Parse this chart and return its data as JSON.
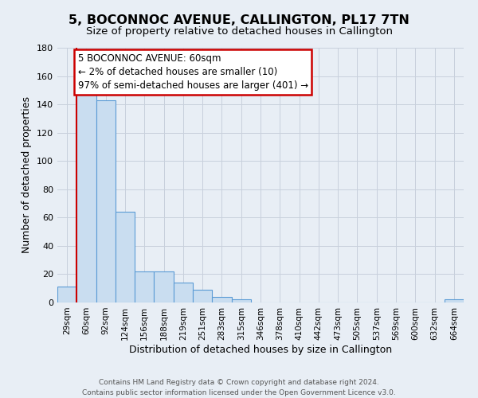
{
  "title": "5, BOCONNOC AVENUE, CALLINGTON, PL17 7TN",
  "subtitle": "Size of property relative to detached houses in Callington",
  "xlabel": "Distribution of detached houses by size in Callington",
  "ylabel": "Number of detached properties",
  "bin_labels": [
    "29sqm",
    "60sqm",
    "92sqm",
    "124sqm",
    "156sqm",
    "188sqm",
    "219sqm",
    "251sqm",
    "283sqm",
    "315sqm",
    "346sqm",
    "378sqm",
    "410sqm",
    "442sqm",
    "473sqm",
    "505sqm",
    "537sqm",
    "569sqm",
    "600sqm",
    "632sqm",
    "664sqm"
  ],
  "bar_values": [
    11,
    150,
    143,
    64,
    22,
    22,
    14,
    9,
    4,
    2,
    0,
    0,
    0,
    0,
    0,
    0,
    0,
    0,
    0,
    0,
    2
  ],
  "bar_color": "#c9ddf0",
  "bar_edge_color": "#5b9bd5",
  "grid_color": "#c8d0dc",
  "background_color": "#e8eef5",
  "annotation_line1": "5 BOCONNOC AVENUE: 60sqm",
  "annotation_line2": "← 2% of detached houses are smaller (10)",
  "annotation_line3": "97% of semi-detached houses are larger (401) →",
  "annotation_box_edge_color": "#cc0000",
  "red_line_x": 0.5,
  "ylim": [
    0,
    180
  ],
  "yticks": [
    0,
    20,
    40,
    60,
    80,
    100,
    120,
    140,
    160,
    180
  ],
  "footer_line1": "Contains HM Land Registry data © Crown copyright and database right 2024.",
  "footer_line2": "Contains public sector information licensed under the Open Government Licence v3.0.",
  "title_fontsize": 11.5,
  "subtitle_fontsize": 9.5,
  "axis_label_fontsize": 9,
  "tick_fontsize": 8,
  "annotation_fontsize": 8.5,
  "footer_fontsize": 6.5
}
